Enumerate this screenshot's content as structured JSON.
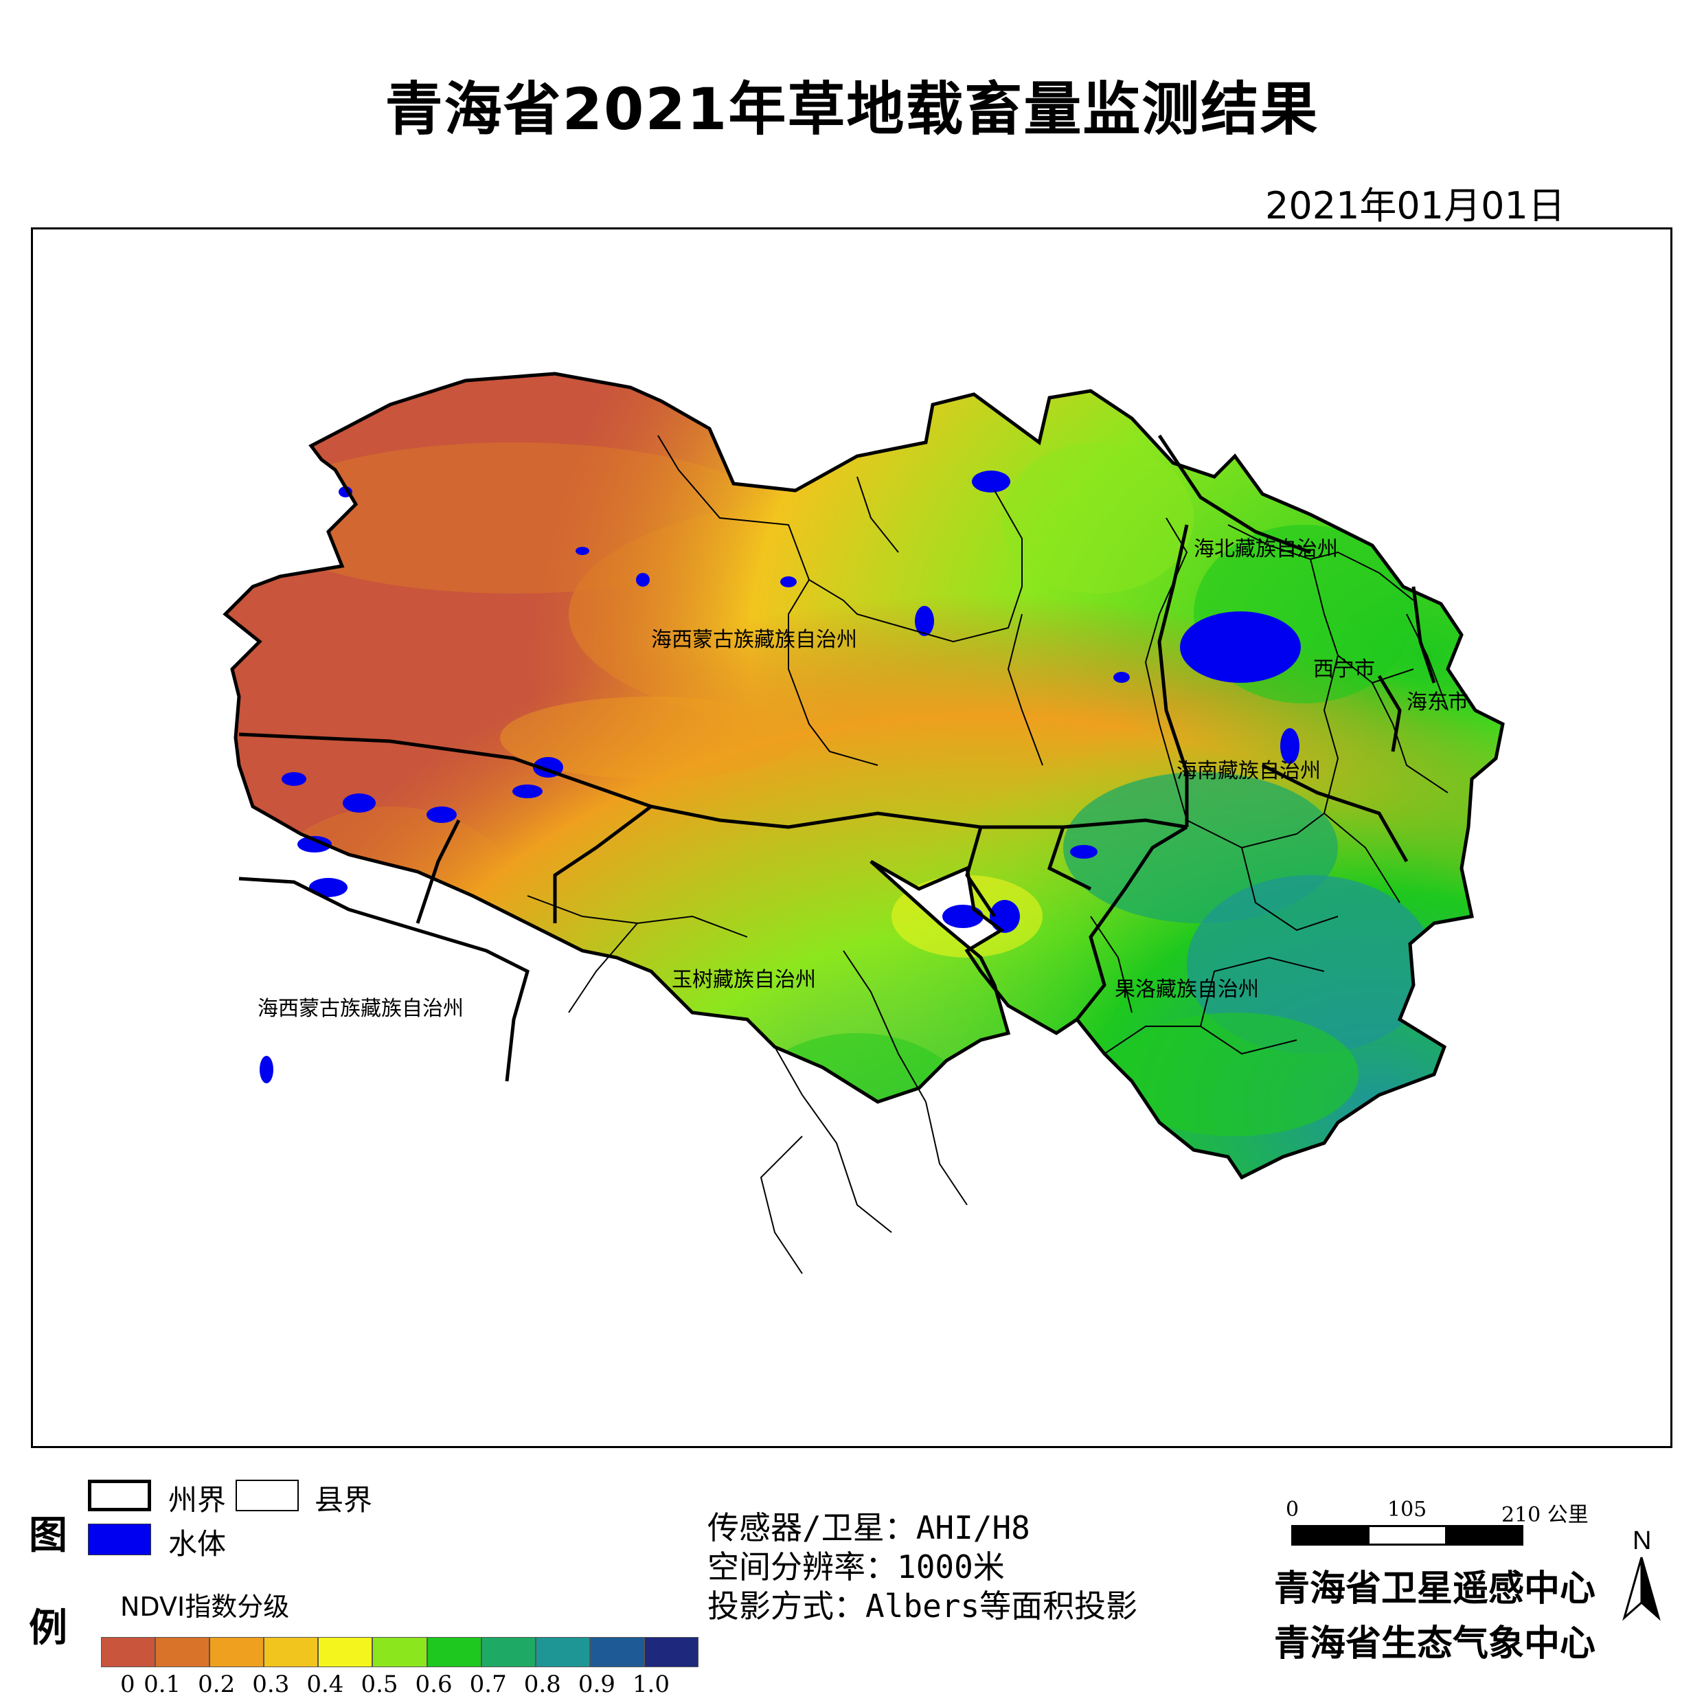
{
  "title": "青海省2021年草地载畜量监测结果",
  "date": "2021年01月01日",
  "regions": [
    "海北藏族自治州",
    "海西蒙古族藏族自治州",
    "西宁市",
    "海东市",
    "海南藏族自治州",
    "海西蒙古族藏族自治州",
    "玉树藏族自治州",
    "果洛藏族自治州"
  ],
  "legend": {
    "title_top": "图",
    "title_bottom": "例",
    "state_boundary": "州界",
    "county_boundary": "县界",
    "water": "水体",
    "ndvi_title": "NDVI指数分级",
    "ndvi_ticks": [
      "0",
      "0.1",
      "0.2",
      "0.3",
      "0.4",
      "0.5",
      "0.6",
      "0.7",
      "0.8",
      "0.9",
      "1.0"
    ],
    "ndvi_colors": [
      "#c8553c",
      "#d9732a",
      "#eea01e",
      "#f2c41e",
      "#f5f51e",
      "#8ce61e",
      "#1ec81e",
      "#1eaa64",
      "#1e9696",
      "#1e5a96",
      "#1e287d"
    ]
  },
  "info": {
    "sensor": "传感器/卫星：AHI/H8",
    "resolution": "空间分辨率：1000米",
    "projection": "投影方式：Albers等面积投影"
  },
  "scale": {
    "labels": [
      "0",
      "105",
      "210 公里"
    ]
  },
  "north": "N",
  "org": {
    "line1": "青海省卫星遥感中心",
    "line2": "青海省生态气象中心"
  },
  "colors": {
    "water": "#0000f0",
    "barren": "#c8553c"
  }
}
